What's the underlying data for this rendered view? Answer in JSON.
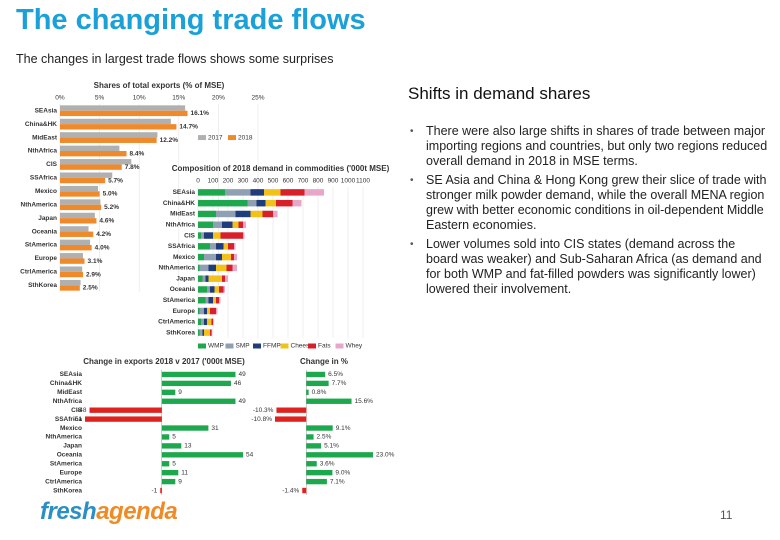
{
  "slide": {
    "title": "The changing trade flows",
    "subtitle": "The changes in largest trade flows shows some surprises",
    "heading": "Shifts in demand shares",
    "bullets": [
      "There were also large shifts in shares of trade between major importing regions and countries, but only two regions reduced overall demand in 2018 in MSE terms.",
      "SE Asia and China & Hong Kong grew their slice of trade with stronger milk powder demand, while the overall MENA region grew with better economic conditions in oil-dependent Middle Eastern economies.",
      "Lower volumes sold into CIS states (demand across the board was weaker) and Sub-Saharan Africa (as demand and for both WMP and fat-filled powders was significantly lower) lowered their involvement."
    ],
    "logo_part1": "fresh",
    "logo_part2": "agenda",
    "page_number": "11"
  },
  "chart_data": [
    {
      "type": "bar",
      "orientation": "horizontal",
      "title": "Shares of total exports (% of MSE)",
      "categories": [
        "SEAsia",
        "China&HK",
        "MidEast",
        "NthAfrica",
        "CIS",
        "SSAfrica",
        "Mexico",
        "NthAmerica",
        "Japan",
        "Oceania",
        "StAmerica",
        "Europe",
        "CtrlAmerica",
        "SthKorea"
      ],
      "series": [
        {
          "name": "2017",
          "color": "#b0b0b0",
          "values": [
            15.8,
            14.0,
            12.3,
            7.5,
            9.0,
            6.6,
            4.8,
            5.1,
            4.4,
            3.6,
            3.8,
            2.9,
            2.8,
            2.6
          ]
        },
        {
          "name": "2018",
          "color": "#f0892a",
          "values": [
            16.1,
            14.7,
            12.2,
            8.4,
            7.8,
            5.7,
            5.0,
            5.2,
            4.6,
            4.2,
            4.0,
            3.1,
            2.9,
            2.5
          ],
          "value_labels": [
            "16.1%",
            "14.7%",
            "12.2%",
            "8.4%",
            "7.8%",
            "5.7%",
            "5.0%",
            "5.2%",
            "4.6%",
            "4.2%",
            "4.0%",
            "3.1%",
            "2.9%",
            "2.5%"
          ]
        }
      ],
      "xlim": [
        0,
        25
      ],
      "xticks": [
        {
          "value": 0,
          "label": "0%"
        },
        {
          "value": 5,
          "label": "5%"
        },
        {
          "value": 10,
          "label": "10%"
        },
        {
          "value": 15,
          "label": "15%"
        },
        {
          "value": 20,
          "label": "20%"
        },
        {
          "value": 25,
          "label": "25%"
        }
      ],
      "grid": true,
      "legend": "right"
    },
    {
      "type": "bar",
      "orientation": "horizontal",
      "stacked": true,
      "title": "Composition of 2018 demand in commodities ('000t MSE)",
      "categories": [
        "SEAsia",
        "China&HK",
        "MidEast",
        "NthAfrica",
        "CIS",
        "SSAfrica",
        "Mexico",
        "NthAmerica",
        "Japan",
        "Oceania",
        "StAmerica",
        "Europe",
        "CtrlAmerica",
        "SthKorea"
      ],
      "series": [
        {
          "name": "WMP",
          "color": "#1ea84d",
          "values": [
            180,
            330,
            120,
            100,
            20,
            80,
            40,
            10,
            30,
            60,
            50,
            10,
            20,
            10
          ]
        },
        {
          "name": "SMP",
          "color": "#8fa0b3",
          "values": [
            170,
            60,
            130,
            60,
            20,
            40,
            80,
            60,
            20,
            20,
            20,
            30,
            20,
            20
          ]
        },
        {
          "name": "FFMP",
          "color": "#1f3d7a",
          "values": [
            90,
            60,
            100,
            70,
            60,
            50,
            40,
            50,
            20,
            30,
            30,
            20,
            20,
            10
          ]
        },
        {
          "name": "Cheese",
          "color": "#f2c21b",
          "values": [
            110,
            70,
            80,
            40,
            50,
            30,
            60,
            70,
            90,
            30,
            20,
            20,
            30,
            40
          ]
        },
        {
          "name": "Fats",
          "color": "#d7202a",
          "values": [
            160,
            110,
            70,
            30,
            150,
            40,
            20,
            40,
            20,
            30,
            20,
            40,
            10,
            10
          ]
        },
        {
          "name": "Whey",
          "color": "#e8a7c8",
          "values": [
            130,
            60,
            30,
            20,
            10,
            10,
            20,
            30,
            20,
            10,
            10,
            10,
            5,
            5
          ]
        }
      ],
      "xlim": [
        0,
        1100
      ],
      "xticks": [
        0,
        100,
        200,
        300,
        400,
        500,
        600,
        700,
        800,
        900,
        1000,
        1100
      ],
      "grid": true,
      "legend": "bottom"
    },
    {
      "type": "bar",
      "orientation": "horizontal",
      "title": "Change in exports 2018 v 2017 ('000t MSE)",
      "categories": [
        "SEAsia",
        "China&HK",
        "MidEast",
        "NthAfrica",
        "CIS",
        "SSAfrica",
        "Mexico",
        "NthAmerica",
        "Japan",
        "Oceania",
        "StAmerica",
        "Europe",
        "CtrlAmerica",
        "SthKorea"
      ],
      "values": [
        49,
        46,
        9,
        49,
        -48,
        -51,
        31,
        5,
        13,
        54,
        5,
        11,
        9,
        -1
      ],
      "color": "#1ea84d",
      "negative_color": "#e0221f",
      "data_labels": true
    },
    {
      "type": "bar",
      "orientation": "horizontal",
      "title": "Change in %",
      "values": [
        6.5,
        7.7,
        0.8,
        15.6,
        -10.3,
        -10.8,
        9.1,
        2.5,
        5.1,
        23.0,
        3.6,
        9.0,
        7.1,
        -1.4
      ],
      "value_labels": [
        "6.5%",
        "7.7%",
        "0.8%",
        "15.6%",
        "-10.3%",
        "-10.8%",
        "9.1%",
        "2.5%",
        "5.1%",
        "23.0%",
        "3.6%",
        "9.0%",
        "7.1%",
        "-1.4%"
      ],
      "color": "#1ea84d",
      "negative_color": "#e0221f",
      "data_labels": true
    }
  ]
}
